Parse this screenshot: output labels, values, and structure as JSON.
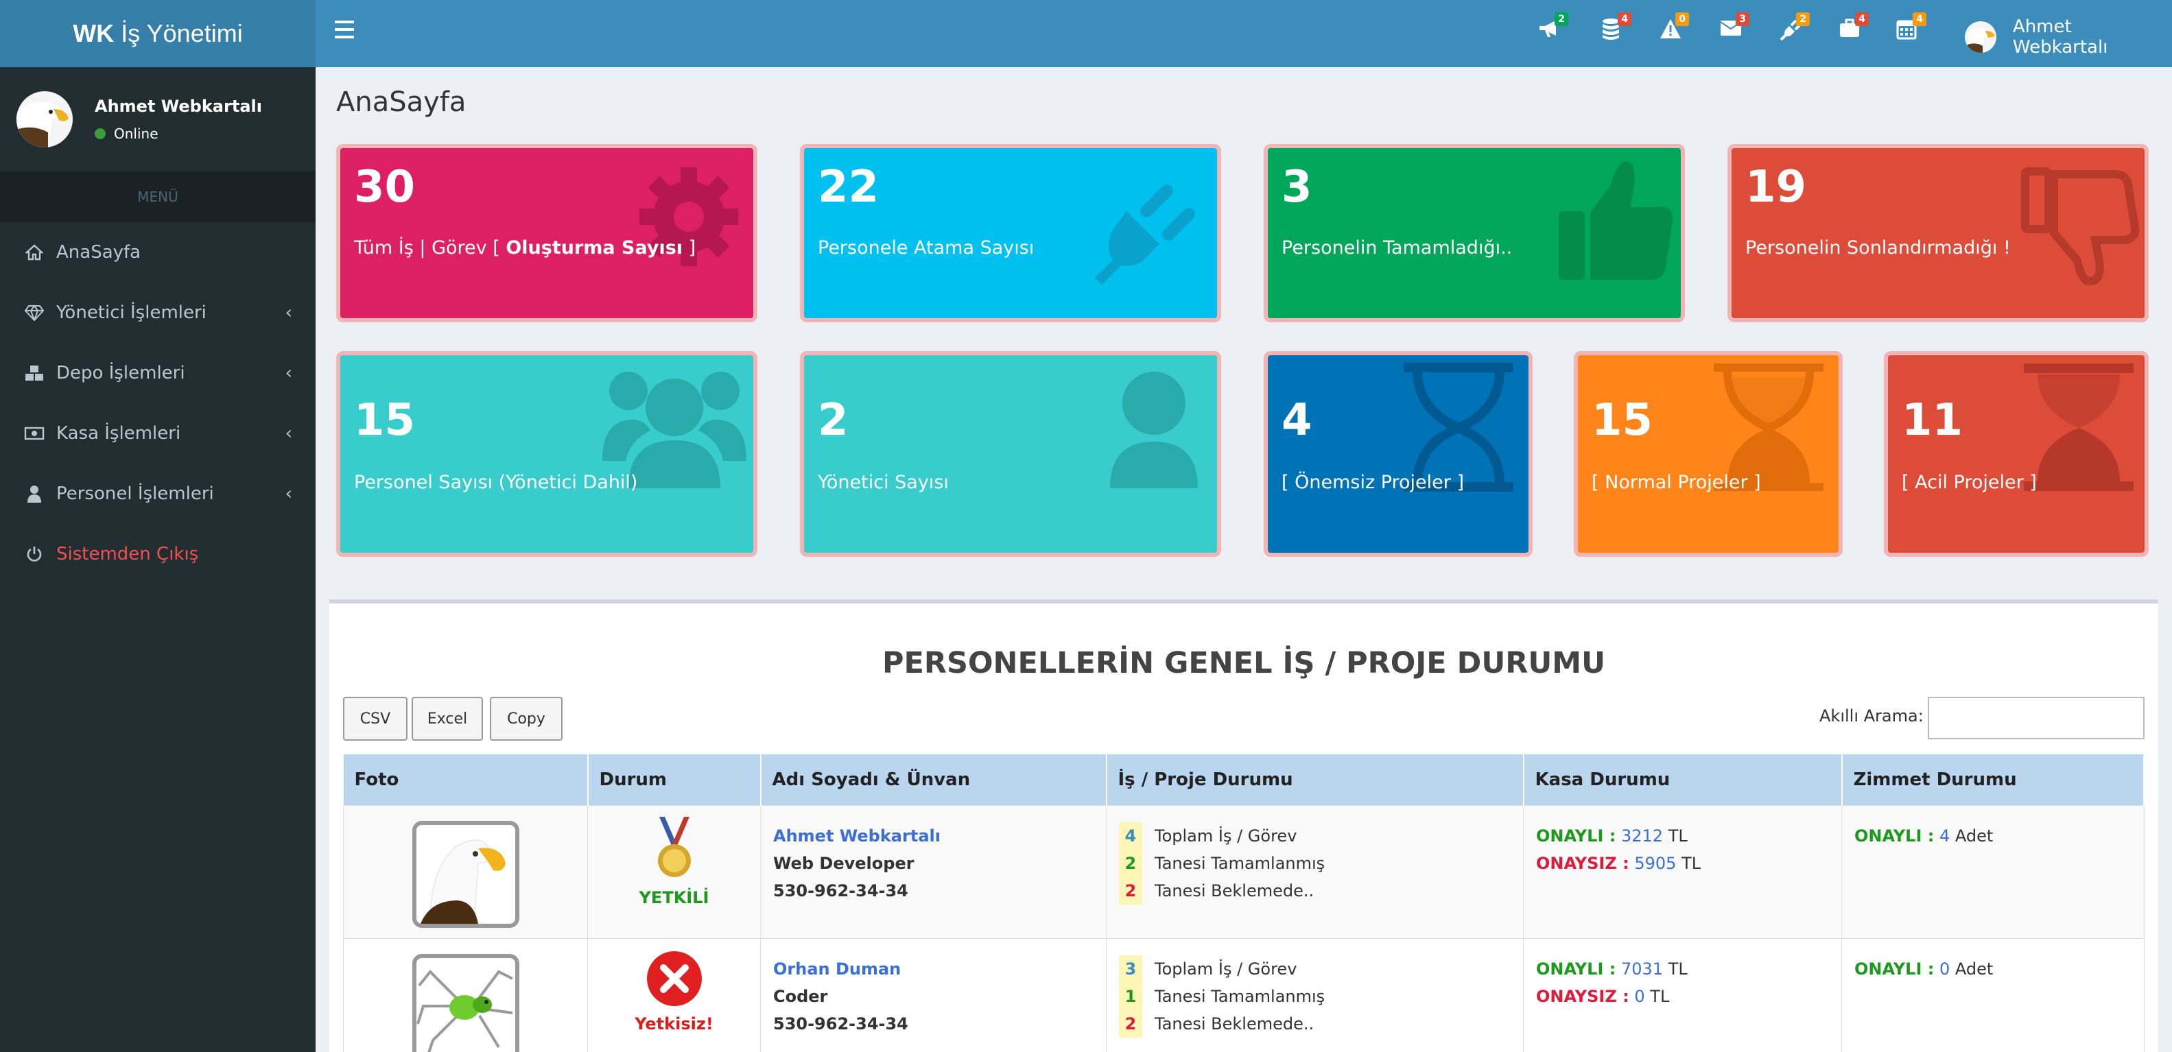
{
  "brand": {
    "bold": "WK",
    "rest": "İş Yönetimi"
  },
  "sidebar": {
    "user_name": "Ahmet Webkartalı",
    "status": "Online",
    "menu_header": "MENÜ",
    "items": [
      {
        "label": "AnaSayfa",
        "icon": "home-icon"
      },
      {
        "label": "Yönetici İşlemleri",
        "icon": "diamond-icon"
      },
      {
        "label": "Depo İşlemleri",
        "icon": "cubes-icon"
      },
      {
        "label": "Kasa İşlemleri",
        "icon": "money-icon"
      },
      {
        "label": "Personel İşlemleri",
        "icon": "user-icon"
      },
      {
        "label": "Sistemden Çıkış",
        "icon": "power-icon"
      }
    ]
  },
  "topbar": {
    "notifications": [
      {
        "icon": "bullhorn-icon",
        "count": "2",
        "color": "#00a65a"
      },
      {
        "icon": "database-icon",
        "count": "4",
        "color": "#dd4b39"
      },
      {
        "icon": "warning-icon",
        "count": "0",
        "color": "#f39c12"
      },
      {
        "icon": "envelope-icon",
        "count": "3",
        "color": "#dd4b39"
      },
      {
        "icon": "plug-icon",
        "count": "2",
        "color": "#f39c12"
      },
      {
        "icon": "briefcase-icon",
        "count": "4",
        "color": "#dd4b39"
      },
      {
        "icon": "calendar-icon",
        "count": "4",
        "color": "#f39c12"
      }
    ],
    "user_name": "Ahmet Webkartalı"
  },
  "page_title": "AnaSayfa",
  "stats": [
    {
      "value": "30",
      "label_pre": "Tüm İş | Görev [ ",
      "label_bold": "Oluşturma Sayısı",
      "label_post": " ]",
      "icon": "gear-icon",
      "color": "#dd1f63"
    },
    {
      "value": "22",
      "label": "Personele Atama Sayısı",
      "icon": "plug-icon",
      "color": "#00c0ef"
    },
    {
      "value": "3",
      "label": "Personelin Tamamladığı..",
      "icon": "thumbs-up-icon",
      "color": "#00a65a"
    },
    {
      "value": "19",
      "label": "Personelin Sonlandırmadığı !",
      "icon": "thumbs-down-icon",
      "color": "#dd4b39"
    },
    {
      "value": "15",
      "label": "Personel Sayısı (Yönetici Dahil)",
      "icon": "users-icon",
      "color": "#39cccc"
    },
    {
      "value": "2",
      "label": "Yönetici Sayısı",
      "icon": "user-icon",
      "color": "#39cccc"
    },
    {
      "value": "4",
      "label": "[ Önemsiz Projeler ]",
      "icon": "hourglass-icon",
      "color": "#0073b7"
    },
    {
      "value": "15",
      "label": "[ Normal Projeler ]",
      "icon": "hourglass-icon",
      "color": "#ff851b"
    },
    {
      "value": "11",
      "label": "[ Acil Projeler ]",
      "icon": "hourglass-icon",
      "color": "#dd4b39"
    }
  ],
  "panel": {
    "title": "PERSONELLERİN GENEL İŞ / PROJE DURUMU",
    "buttons": [
      "CSV",
      "Excel",
      "Copy"
    ],
    "search_label": "Akıllı Arama:",
    "search_value": ""
  },
  "table": {
    "headers": [
      "Foto",
      "Durum",
      "Adı Soyadı & Ünvan",
      "İş / Proje Durumu",
      "Kasa Durumu",
      "Zimmet Durumu"
    ],
    "rows": [
      {
        "photo": "eagle-photo",
        "status_icon": "medal-icon",
        "status_label": "YETKİLİ",
        "name": "Ahmet Webkartalı",
        "title": "Web Developer",
        "phone": "530-962-34-34",
        "total": "4",
        "total_label": "Toplam İş / Görev",
        "done": "2",
        "done_label": "Tanesi Tamamlanmış",
        "waiting": "2",
        "waiting_label": "Tanesi Beklemede..",
        "approved_label": "ONAYLI :",
        "approved_amount": "3212",
        "approved_unit": "TL",
        "unapproved_label": "ONAYSIZ :",
        "unapproved_amount": "5905",
        "unapproved_unit": "TL",
        "zimmet_label": "ONAYLI :",
        "zimmet_count": "4",
        "zimmet_unit": "Adet"
      },
      {
        "photo": "spider-photo",
        "status_icon": "x-circle-icon",
        "status_label": "Yetkisiz!",
        "name": "Orhan Duman",
        "title": "Coder",
        "phone": "530-962-34-34",
        "total": "3",
        "total_label": "Toplam İş / Görev",
        "done": "1",
        "done_label": "Tanesi Tamamlanmış",
        "waiting": "2",
        "waiting_label": "Tanesi Beklemede..",
        "approved_label": "ONAYLI :",
        "approved_amount": "7031",
        "approved_unit": "TL",
        "unapproved_label": "ONAYSIZ :",
        "unapproved_amount": "0",
        "unapproved_unit": "TL",
        "zimmet_label": "ONAYLI :",
        "zimmet_count": "0",
        "zimmet_unit": "Adet"
      }
    ]
  }
}
